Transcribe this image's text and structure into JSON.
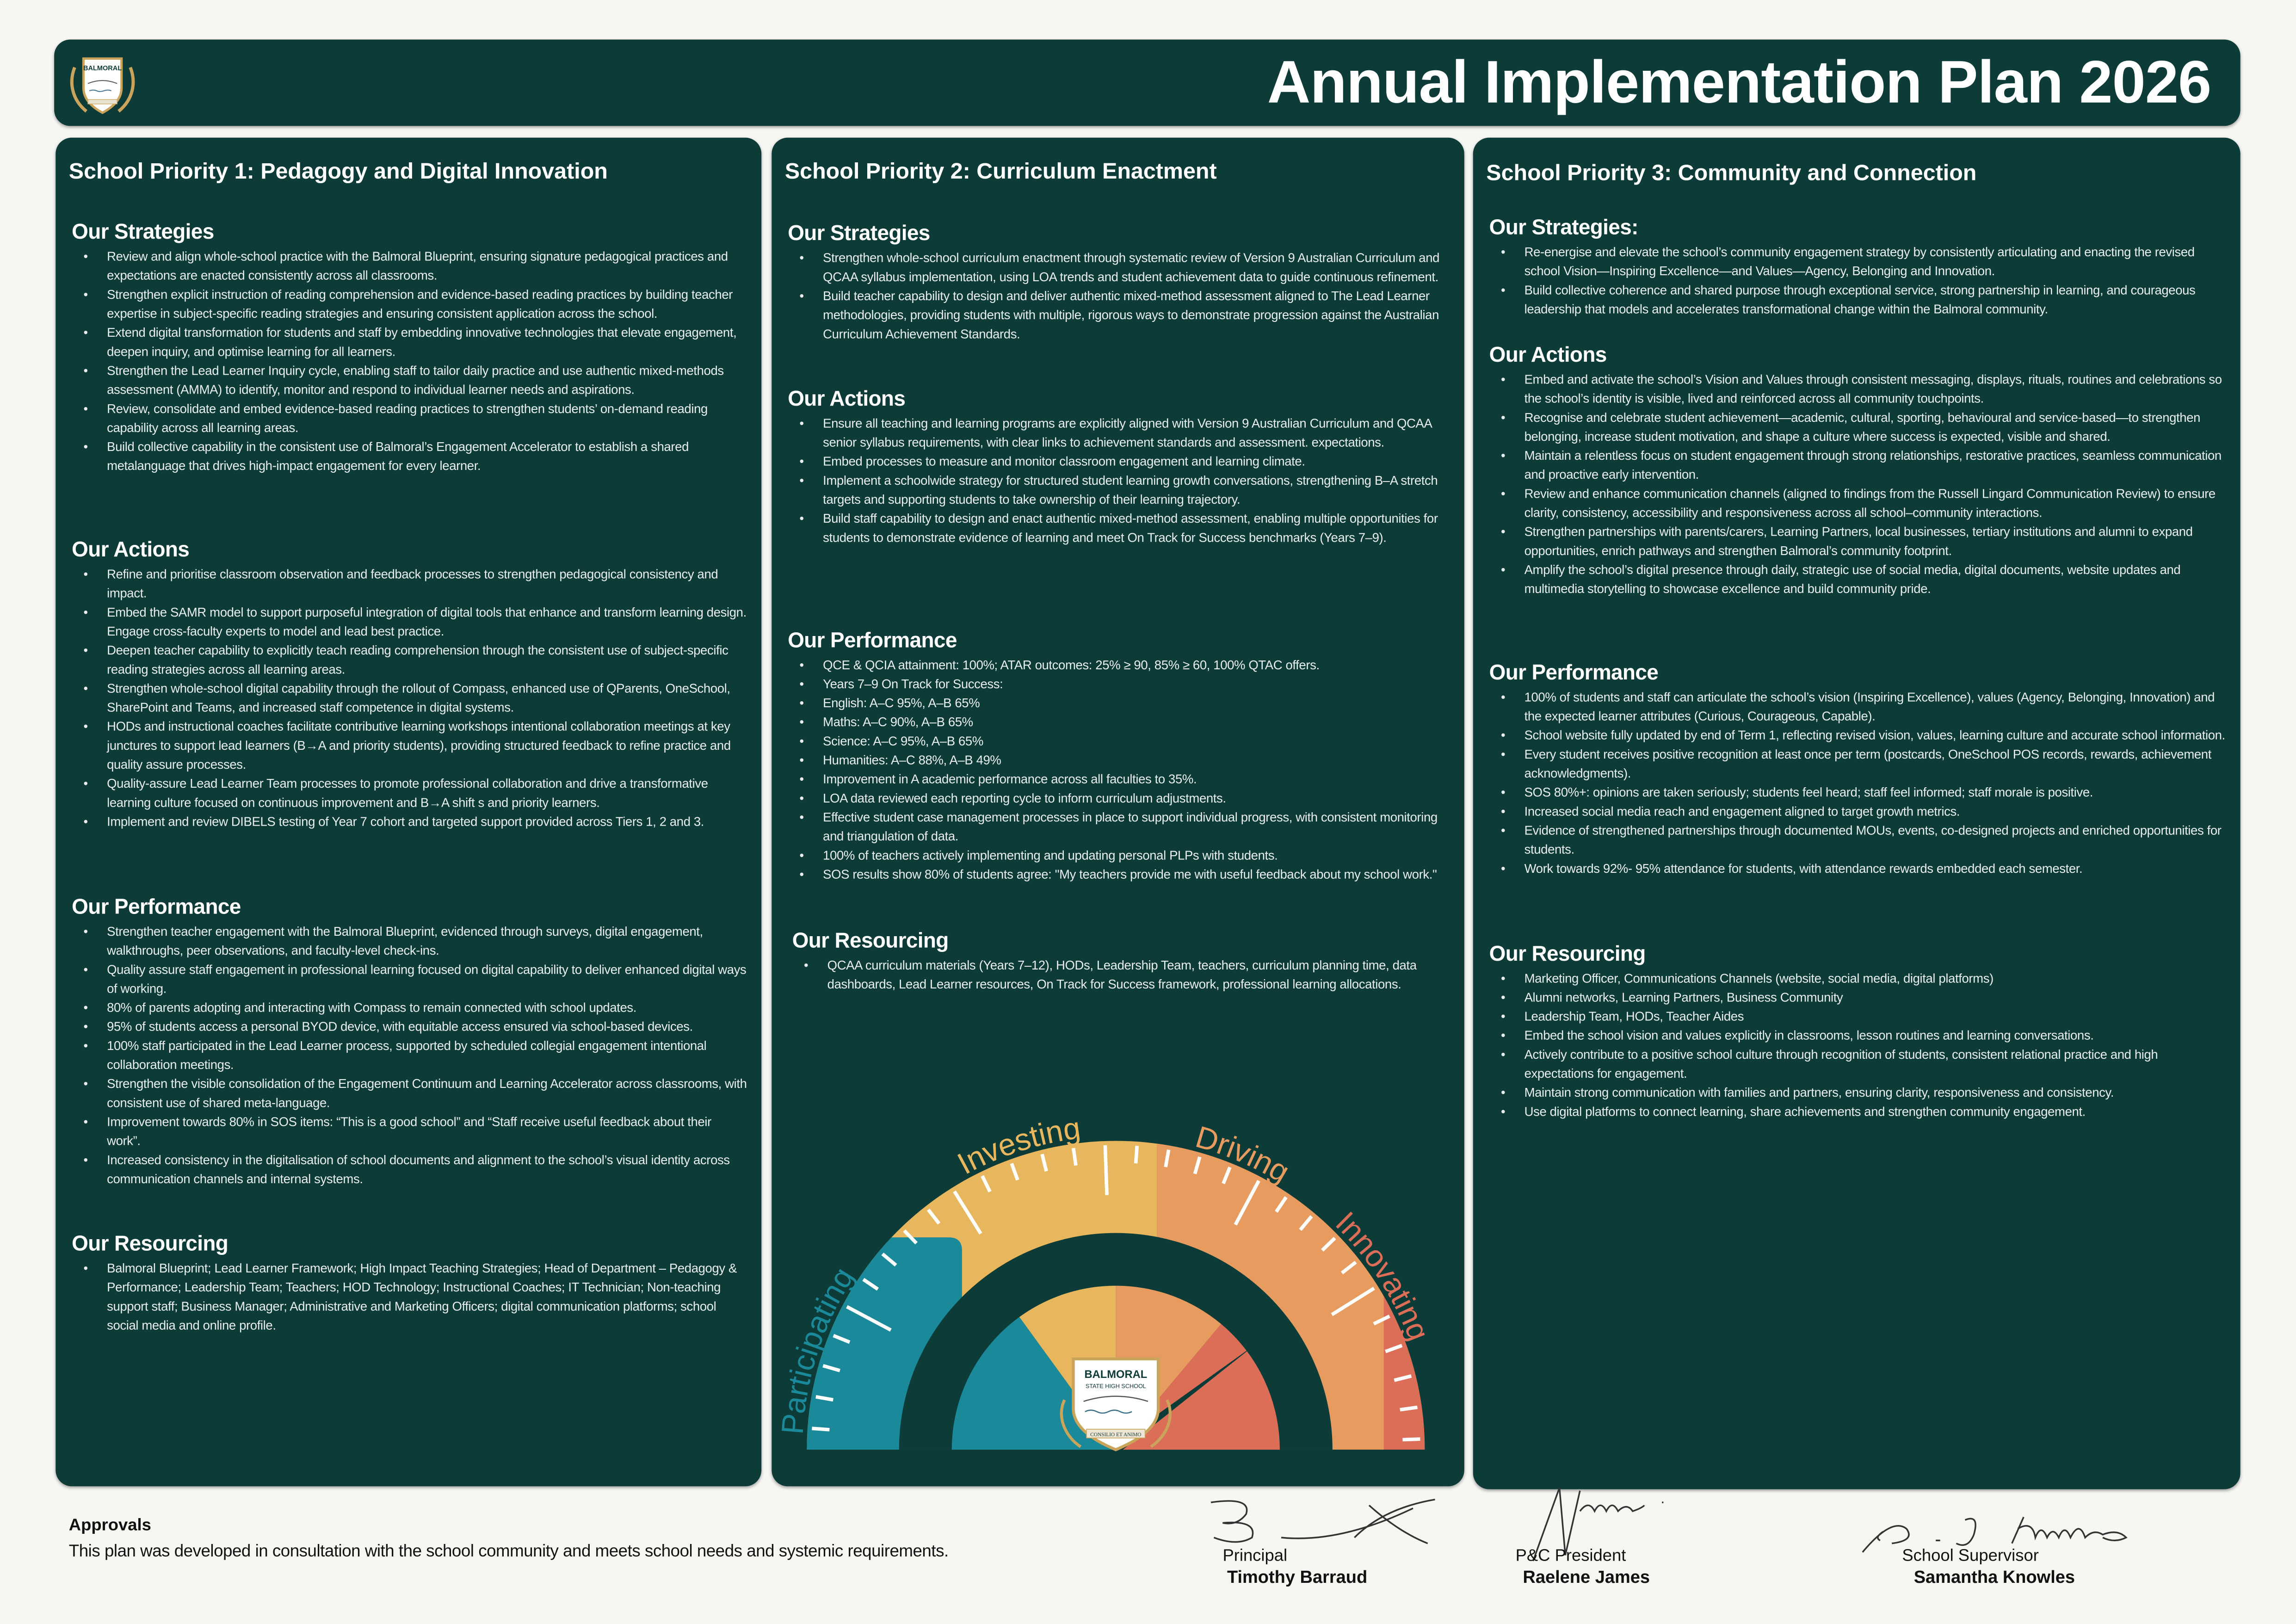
{
  "header": {
    "title": "Annual Implementation Plan 2026",
    "logo": {
      "name": "BALMORAL",
      "sub": "STATE HIGH SCHOOL",
      "motto": "CONSILIO ET ANIMO"
    }
  },
  "colors": {
    "panel": "#0d3b38",
    "participating": "#1a8a9b",
    "investing": "#e8b65c",
    "driving": "#e89b5e",
    "innovating": "#dc6e58"
  },
  "priorities": [
    {
      "title": "School Priority 1: Pedagogy and Digital Innovation",
      "sections": [
        {
          "heading": "Our Strategies",
          "items": [
            "Review and align whole-school practice with the Balmoral Blueprint, ensuring signature pedagogical practices and expectations are enacted consistently across all classrooms.",
            "Strengthen explicit instruction of reading comprehension and evidence-based reading practices by building teacher expertise in subject-specific reading strategies and ensuring consistent application across the school.",
            "Extend digital transformation for students and staff by embedding innovative technologies that elevate engagement, deepen inquiry, and optimise learning for all learners.",
            "Strengthen the Lead Learner Inquiry cycle, enabling staff to tailor daily practice and use authentic mixed-methods assessment (AMMA) to identify, monitor and respond to individual learner needs and aspirations.",
            "Review, consolidate and embed evidence-based reading practices to strengthen students’ on-demand reading capability across all learning areas.",
            "Build collective capability in the consistent use of Balmoral’s Engagement Accelerator to establish a shared metalanguage that drives high-impact engagement for every learner."
          ]
        },
        {
          "heading": "Our Actions",
          "items": [
            "Refine and prioritise classroom observation and feedback processes to strengthen pedagogical consistency and impact.",
            "Embed the SAMR model to support purposeful integration of digital tools that enhance and transform learning design. Engage cross-faculty experts to model and lead best practice.",
            "Deepen teacher capability to explicitly teach reading comprehension through the consistent use of subject-specific reading strategies across all learning areas.",
            "Strengthen whole-school digital capability through the rollout of Compass, enhanced use of QParents, OneSchool, SharePoint and Teams, and increased staff competence in digital systems.",
            "HODs and instructional coaches facilitate contributive learning workshops intentional collaboration meetings at key junctures to support lead learners (B→A and priority students), providing structured feedback to refine practice and quality assure processes.",
            "Quality-assure Lead Learner Team processes to promote professional collaboration and drive a transformative learning culture focused on continuous improvement and B→A shift s and priority learners.",
            "Implement and review DIBELS testing of Year 7 cohort and targeted support provided across Tiers 1, 2 and 3."
          ]
        },
        {
          "heading": "Our Performance",
          "items": [
            "Strengthen teacher engagement with the Balmoral Blueprint, evidenced through surveys, digital engagement, walkthroughs, peer observations, and faculty-level check-ins.",
            "Quality assure staff engagement in professional learning focused on digital capability to deliver enhanced digital ways of working.",
            "80% of parents adopting and interacting with Compass to remain connected with school updates.",
            "95% of students access a personal BYOD device, with equitable access ensured via school-based devices.",
            "100% staff participated in the Lead Learner process, supported by scheduled collegial engagement intentional collaboration meetings.",
            "Strengthen the visible consolidation of the Engagement Continuum and Learning Accelerator across classrooms, with consistent use of shared meta-language.",
            "Improvement towards 80% in SOS items: “This is a good school” and “Staff receive useful feedback about their work”.",
            "Increased consistency in the digitalisation of school documents and alignment to the school’s visual identity across communication channels and internal systems."
          ]
        },
        {
          "heading": "Our Resourcing",
          "items": [
            "Balmoral Blueprint; Lead Learner Framework; High Impact Teaching Strategies; Head of Department – Pedagogy & Performance; Leadership Team; Teachers; HOD Technology; Instructional Coaches; IT Technician; Non-teaching support staff; Business Manager; Administrative and Marketing Officers; digital communication platforms; school social media and online profile."
          ]
        }
      ]
    },
    {
      "title": "School Priority 2: Curriculum Enactment",
      "sections": [
        {
          "heading": "Our Strategies",
          "items": [
            "Strengthen whole-school curriculum enactment through systematic review of Version 9 Australian Curriculum and QCAA syllabus implementation, using LOA trends and student achievement data to guide continuous refinement.",
            "Build teacher capability to design and deliver authentic mixed-method assessment aligned to The Lead Learner methodologies, providing students with multiple, rigorous ways to demonstrate progression against the Australian Curriculum Achievement Standards."
          ]
        },
        {
          "heading": "Our Actions",
          "items": [
            "Ensure all teaching and learning programs are explicitly aligned with Version 9 Australian Curriculum and QCAA senior syllabus requirements, with clear links to achievement standards and assessment. expectations.",
            "Embed processes to measure and monitor classroom engagement and learning climate.",
            "Implement a schoolwide strategy for structured student learning growth conversations, strengthening B–A stretch targets and supporting students to take ownership of their learning trajectory.",
            "Build staff capability to design and enact authentic mixed-method assessment, enabling multiple opportunities for students to demonstrate evidence of learning and meet On Track for Success benchmarks (Years 7–9)."
          ]
        },
        {
          "heading": "Our Performance",
          "items": [
            "QCE & QCIA attainment: 100%; ATAR outcomes: 25% ≥ 90, 85% ≥ 60, 100% QTAC offers.",
            "Years 7–9 On Track for Success:",
            "English: A–C 95%, A–B 65%",
            "Maths: A–C 90%, A–B 65%",
            "Science: A–C 95%, A–B 65%",
            "Humanities: A–C 88%, A–B 49%",
            "Improvement in A academic performance across all faculties to 35%.",
            "LOA data reviewed each reporting cycle to inform curriculum adjustments.",
            "Effective student case management processes in place to support individual progress, with consistent monitoring and triangulation of data.",
            "100% of teachers actively implementing and updating personal PLPs with students.",
            "SOS results show 80% of students agree: \"My teachers provide me with useful feedback about my school work.\""
          ]
        },
        {
          "heading": "Our Resourcing",
          "items": [
            "QCAA curriculum materials (Years 7–12), HODs, Leadership Team, teachers, curriculum planning time, data dashboards, Lead Learner resources, On Track for Success framework, professional learning allocations."
          ]
        }
      ]
    },
    {
      "title": "School Priority 3: Community and Connection",
      "sections": [
        {
          "heading": "Our Strategies:",
          "items": [
            "Re-energise and elevate the school’s community engagement strategy by consistently articulating and enacting the revised school Vision—Inspiring Excellence—and Values—Agency, Belonging and Innovation.",
            "Build collective coherence and shared purpose through exceptional service, strong partnership in learning, and courageous leadership that models and accelerates transformational change within the Balmoral community."
          ]
        },
        {
          "heading": "Our Actions",
          "items": [
            "Embed and activate the school’s Vision and Values through consistent messaging, displays, rituals, routines and celebrations so the school’s identity is visible, lived and reinforced across all community touchpoints.",
            "Recognise and celebrate student achievement—academic, cultural, sporting, behavioural and service-based—to strengthen belonging, increase student motivation, and shape a culture where success is expected, visible and shared.",
            "Maintain a relentless focus on student engagement through strong relationships, restorative practices, seamless communication and proactive early intervention.",
            "Review and enhance communication channels (aligned to findings from the Russell Lingard Communication Review) to ensure clarity, consistency, accessibility and responsiveness across all school–community interactions.",
            "Strengthen partnerships with parents/carers, Learning Partners, local businesses, tertiary institutions and alumni to expand opportunities, enrich pathways and strengthen Balmoral’s community footprint.",
            "Amplify the school’s digital presence through daily, strategic use of social media, digital documents, website updates and multimedia storytelling to showcase excellence and build community pride."
          ]
        },
        {
          "heading": "Our Performance",
          "items": [
            "100% of students and staff can articulate the school’s vision (Inspiring Excellence), values (Agency, Belonging, Innovation) and the expected learner attributes (Curious, Courageous, Capable).",
            "School website fully updated by end of Term 1, reflecting revised vision, values, learning culture and accurate school information.",
            "Every student receives positive recognition at least once per term (postcards, OneSchool POS records, rewards, achievement acknowledgments).",
            "SOS 80%+: opinions are taken seriously; students feel heard; staff feel informed; staff morale is positive.",
            "Increased social media reach and engagement aligned to target growth metrics.",
            "Evidence of strengthened partnerships through documented MOUs, events, co-designed projects and enriched opportunities for students.",
            "Work towards 92%- 95% attendance for students, with attendance rewards embedded each semester."
          ]
        },
        {
          "heading": "Our Resourcing",
          "items": [
            "Marketing Officer, Communications Channels (website, social media, digital platforms)",
            "Alumni networks, Learning Partners, Business Community",
            "Leadership Team, HODs, Teacher Aides",
            "Embed the school vision and values explicitly in classrooms, lesson routines and learning conversations.",
            "Actively contribute to a positive school culture through recognition of students, consistent relational practice and high expectations for engagement.",
            "Maintain strong communication with families and partners, ensuring clarity, responsiveness and consistency.",
            "Use digital platforms to connect learning, share achievements and strengthen community engagement."
          ]
        }
      ]
    }
  ],
  "gauge": {
    "stages": [
      "Participating",
      "Investing",
      "Driving",
      "Innovating"
    ],
    "needle_percent": 80
  },
  "footer": {
    "approvals_heading": "Approvals",
    "approvals_text": "This plan was developed in consultation with the school community and meets school needs and systemic requirements.",
    "signatories": [
      {
        "role": "Principal",
        "name": "Timothy Barraud"
      },
      {
        "role": "P&C President",
        "name": "Raelene James"
      },
      {
        "role": "School Supervisor",
        "name": "Samantha Knowles"
      }
    ]
  }
}
